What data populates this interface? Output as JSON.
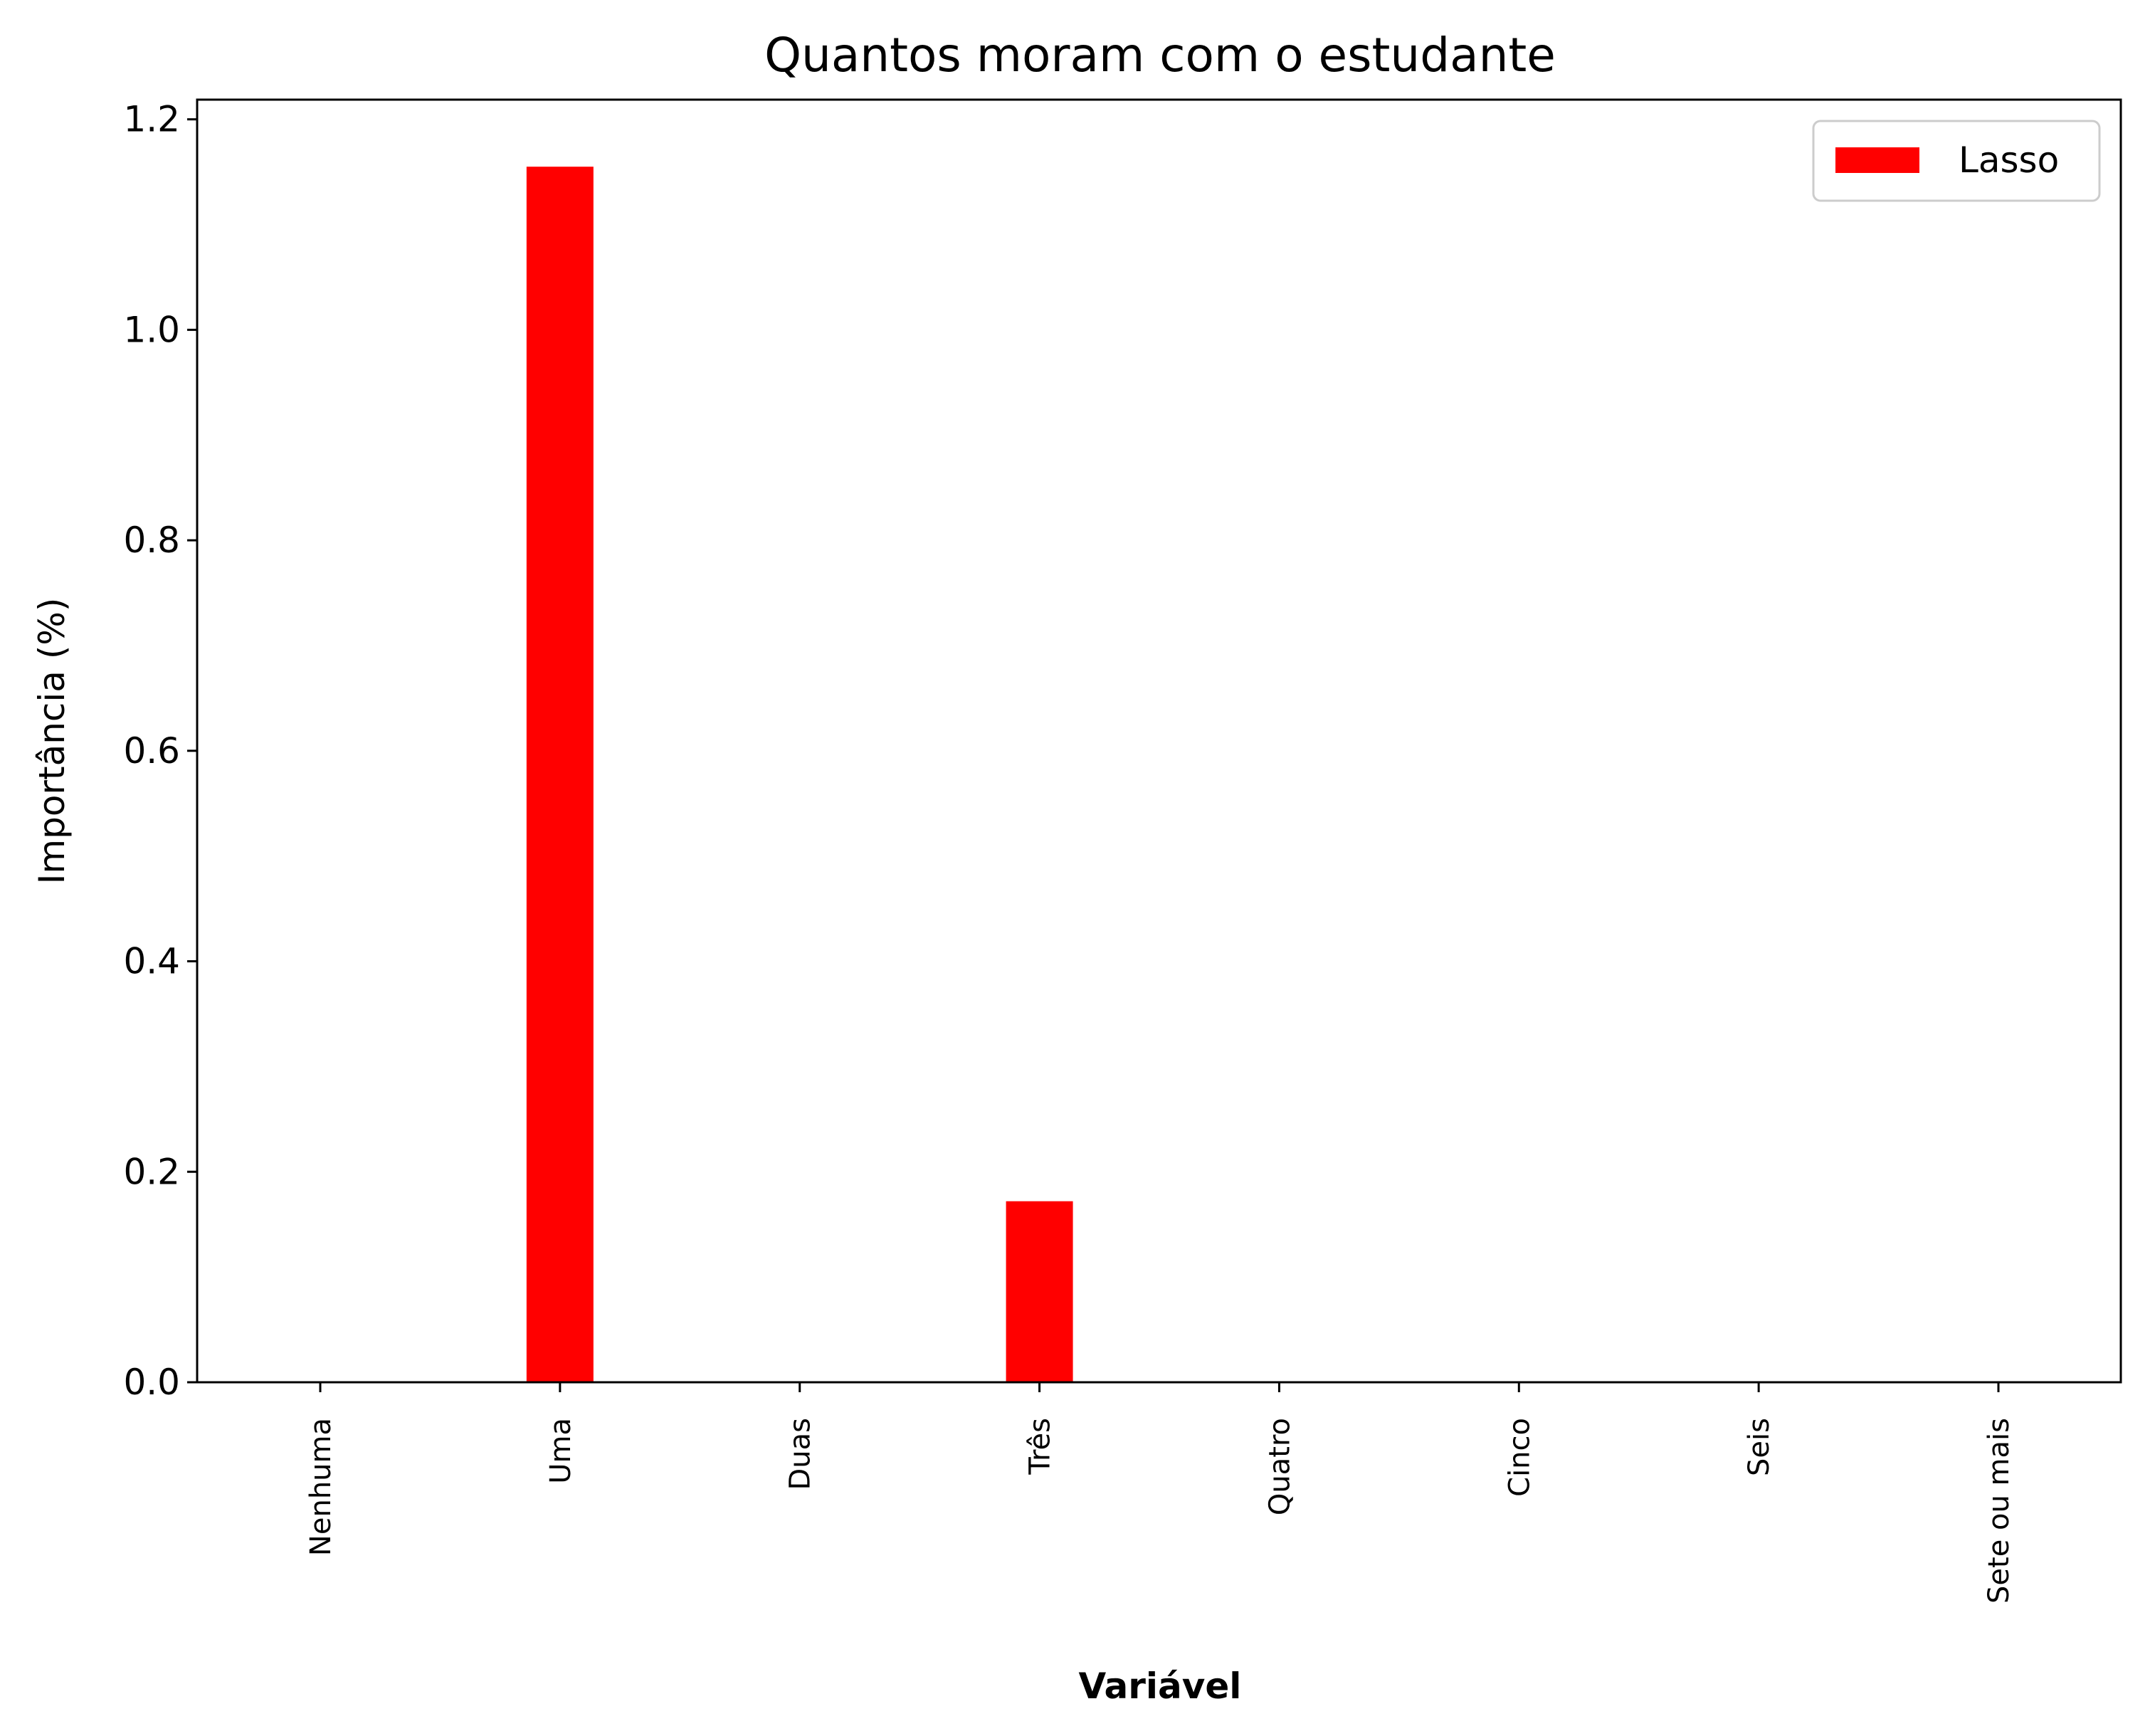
{
  "chart_data": {
    "type": "bar",
    "title": "Quantos moram com o estudante",
    "xlabel": "Variável",
    "ylabel": "Importância (%)",
    "categories": [
      "Nenhuma",
      "Uma",
      "Duas",
      "Três",
      "Quatro",
      "Cinco",
      "Seis",
      "Sete ou mais"
    ],
    "series": [
      {
        "name": "Lasso",
        "color": "#ff0000",
        "values": [
          0.0,
          1.155,
          0.0,
          0.172,
          0.0,
          0.0,
          0.0,
          0.0
        ]
      }
    ],
    "ylim": [
      0,
      1.2
    ],
    "yticks": [
      "0.0",
      "0.2",
      "0.4",
      "0.6",
      "0.8",
      "1.0",
      "1.2"
    ],
    "grid": false,
    "legend_position": "top-right"
  }
}
